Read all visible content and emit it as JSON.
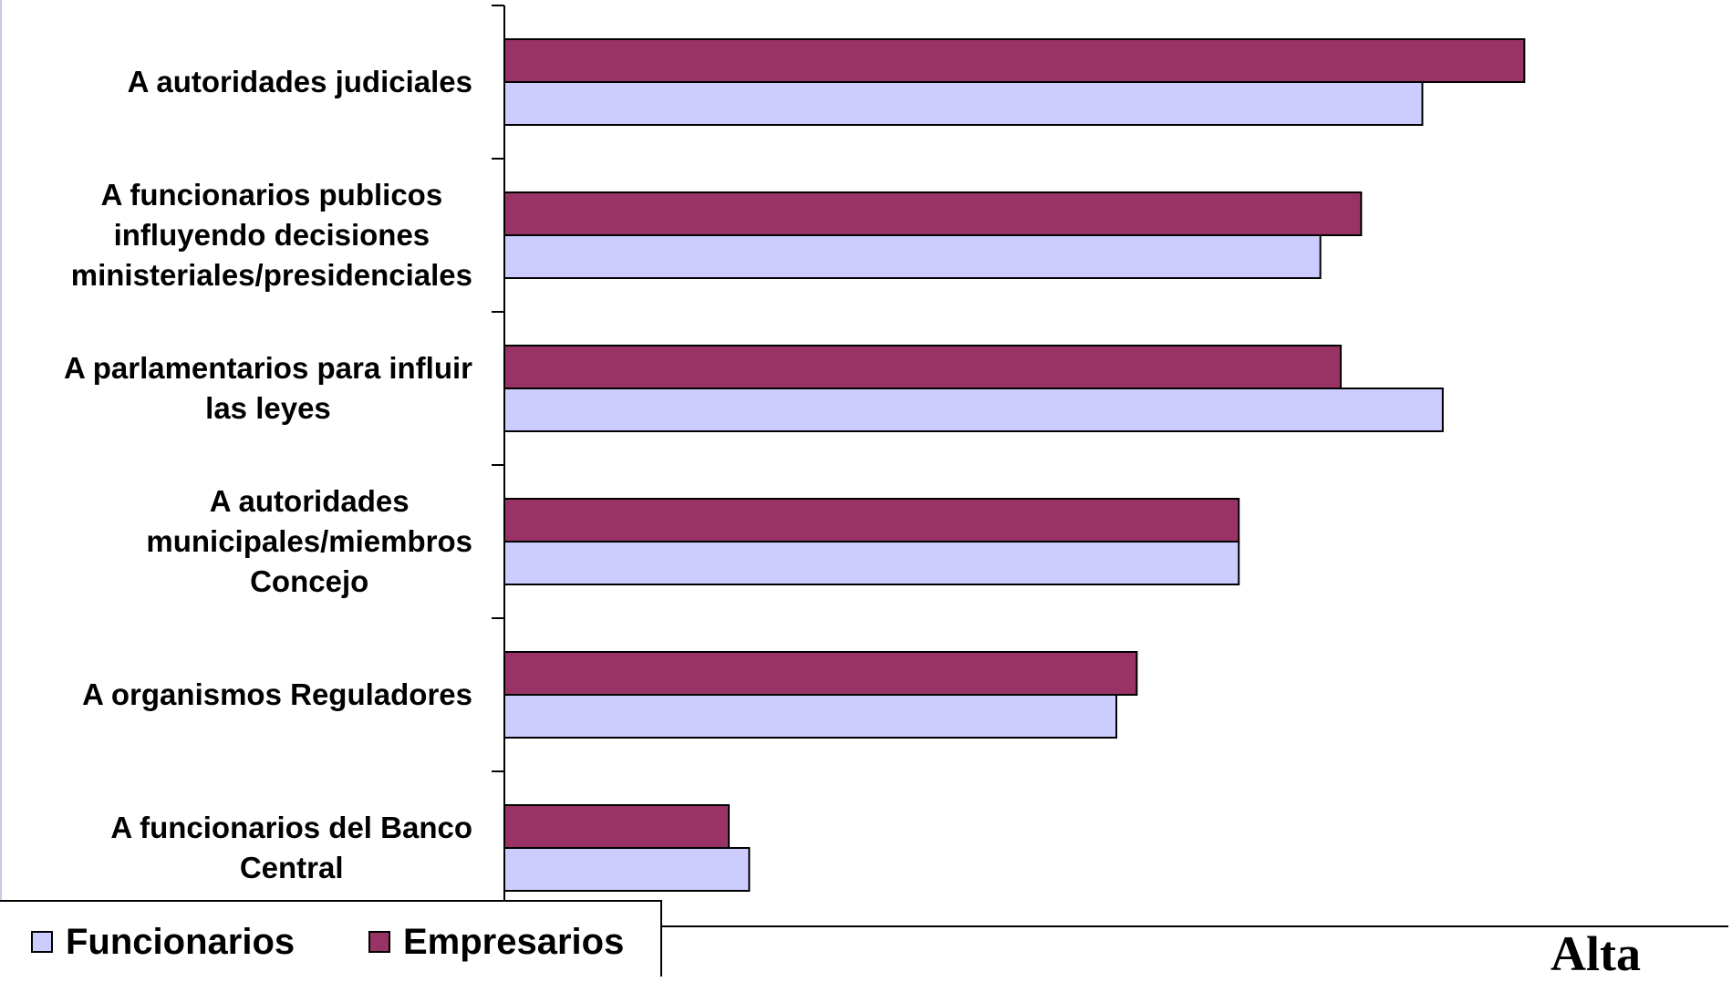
{
  "chart_data": {
    "type": "bar",
    "orientation": "horizontal",
    "categories": [
      "A autoridades judiciales",
      "A funcionarios publicos influyendo decisiones ministeriales/presidenciales",
      "A parlamentarios para influir las leyes",
      "A autoridades municipales/miembros Concejo",
      "A organismos Reguladores",
      "A funcionarios del Banco Central"
    ],
    "category_lines": [
      [
        "A autoridades judiciales"
      ],
      [
        "A funcionarios publicos",
        "influyendo decisiones",
        "ministeriales/presidenciales"
      ],
      [
        "A parlamentarios para influir",
        "las leyes"
      ],
      [
        "A autoridades",
        "municipales/miembros",
        "Concejo"
      ],
      [
        "A organismos Reguladores"
      ],
      [
        "A funcionarios del Banco",
        "Central"
      ]
    ],
    "series": [
      {
        "name": "Empresarios",
        "color": "#993366",
        "values": [
          100,
          84,
          82,
          72,
          62,
          22
        ]
      },
      {
        "name": "Funcionarios",
        "color": "#ccccff",
        "values": [
          90,
          80,
          92,
          72,
          60,
          24
        ]
      }
    ],
    "xlim": [
      0,
      120
    ],
    "grid": false,
    "legend_position": "bottom-left",
    "annotation": "Alta"
  }
}
